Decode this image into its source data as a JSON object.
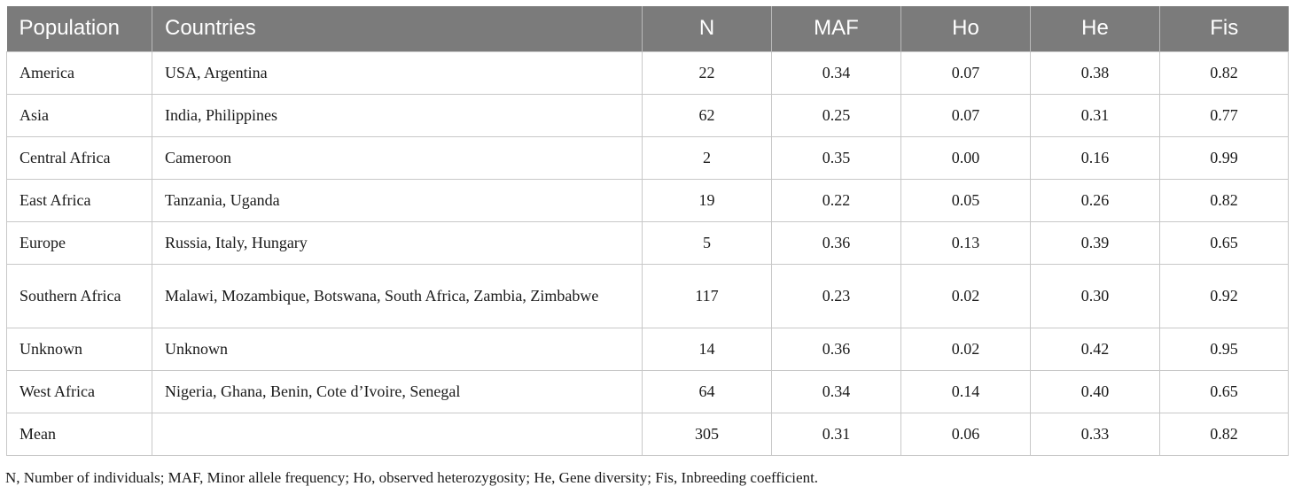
{
  "table": {
    "headers": [
      "Population",
      "Countries",
      "N",
      "MAF",
      "Ho",
      "He",
      "Fis"
    ],
    "rows": [
      [
        "America",
        "USA, Argentina",
        "22",
        "0.34",
        "0.07",
        "0.38",
        "0.82"
      ],
      [
        "Asia",
        "India, Philippines",
        "62",
        "0.25",
        "0.07",
        "0.31",
        "0.77"
      ],
      [
        "Central Africa",
        "Cameroon",
        "2",
        "0.35",
        "0.00",
        "0.16",
        "0.99"
      ],
      [
        "East Africa",
        "Tanzania, Uganda",
        "19",
        "0.22",
        "0.05",
        "0.26",
        "0.82"
      ],
      [
        "Europe",
        "Russia, Italy, Hungary",
        "5",
        "0.36",
        "0.13",
        "0.39",
        "0.65"
      ],
      [
        "Southern Africa",
        "Malawi, Mozambique, Botswana, South Africa, Zambia, Zimbabwe",
        "117",
        "0.23",
        "0.02",
        "0.30",
        "0.92"
      ],
      [
        "Unknown",
        "Unknown",
        "14",
        "0.36",
        "0.02",
        "0.42",
        "0.95"
      ],
      [
        "West Africa",
        "Nigeria, Ghana, Benin, Cote d’Ivoire, Senegal",
        "64",
        "0.34",
        "0.14",
        "0.40",
        "0.65"
      ],
      [
        "Mean",
        "",
        "305",
        "0.31",
        "0.06",
        "0.33",
        "0.82"
      ]
    ]
  },
  "footnote": "N, Number of individuals; MAF, Minor allele frequency; Ho, observed heterozygosity; He, Gene diversity; Fis, Inbreeding coefficient.",
  "colors": {
    "header_background": "#7b7b7b",
    "header_text": "#ffffff",
    "grid_lines": "#c8c8c8"
  }
}
